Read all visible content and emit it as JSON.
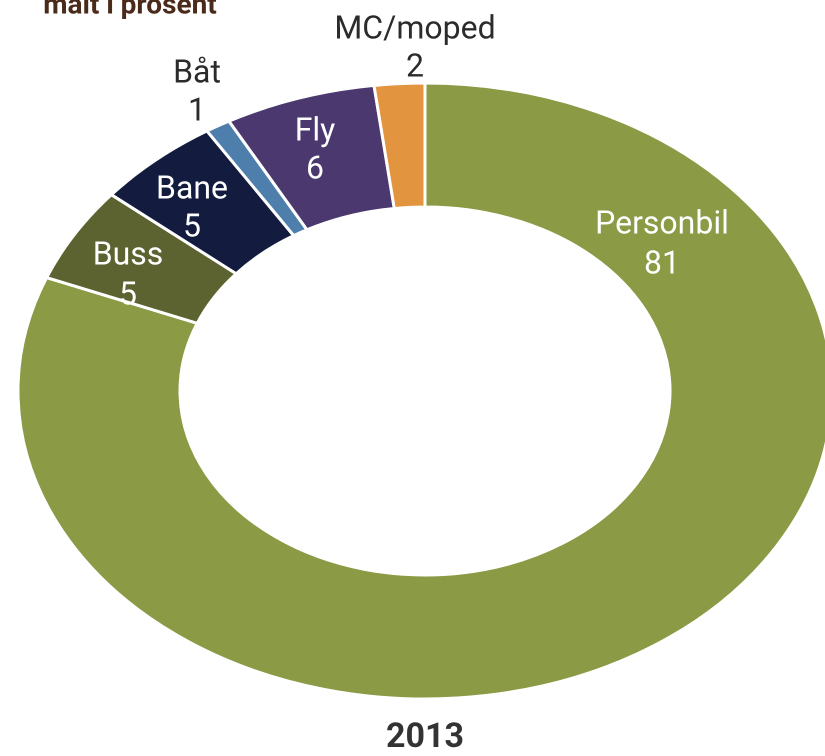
{
  "chart_data": {
    "type": "donut",
    "title": "målt i prosent",
    "annotations": [
      "2013"
    ],
    "categories": [
      "Personbil",
      "Buss",
      "Bane",
      "Båt",
      "Fly",
      "MC/moped"
    ],
    "values": [
      81,
      5,
      5,
      1,
      6,
      2
    ],
    "colors": [
      "#8a9a45",
      "#5c6330",
      "#131b3f",
      "#4d7eac",
      "#4b386f",
      "#e3943f"
    ]
  }
}
